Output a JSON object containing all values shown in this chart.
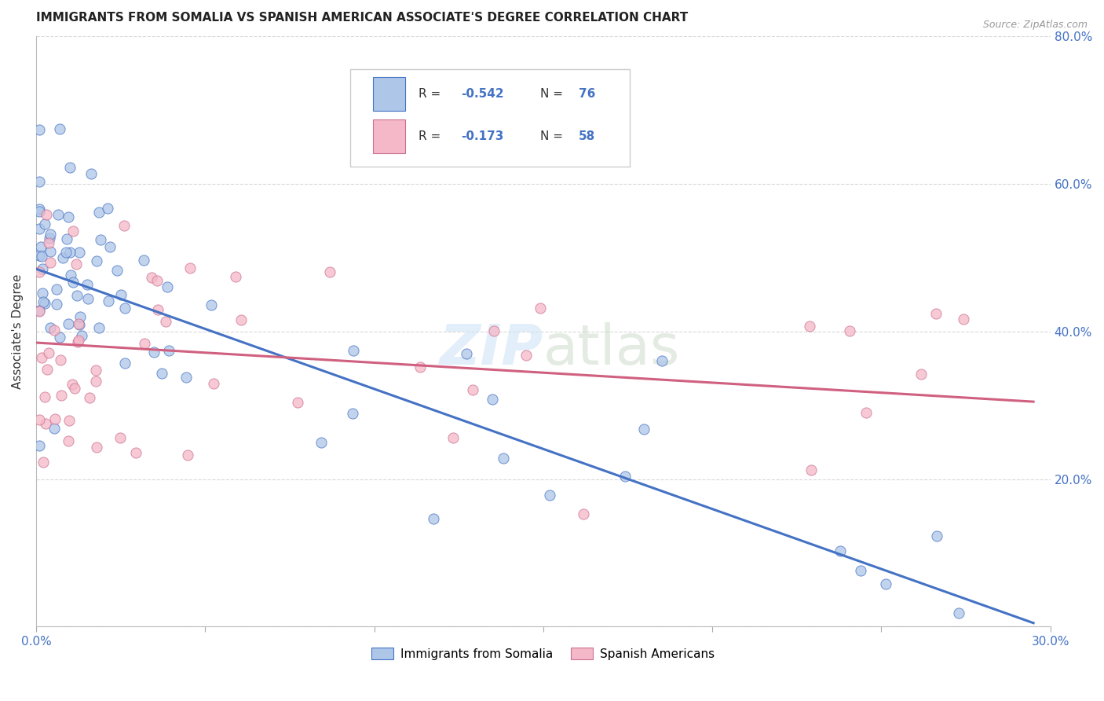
{
  "title": "IMMIGRANTS FROM SOMALIA VS SPANISH AMERICAN ASSOCIATE'S DEGREE CORRELATION CHART",
  "source": "Source: ZipAtlas.com",
  "ylabel": "Associate's Degree",
  "x_min": 0.0,
  "x_max": 0.3,
  "y_min": 0.0,
  "y_max": 0.8,
  "x_ticks": [
    0.0,
    0.05,
    0.1,
    0.15,
    0.2,
    0.25,
    0.3
  ],
  "y_ticks": [
    0.0,
    0.2,
    0.4,
    0.6,
    0.8
  ],
  "y_tick_labels": [
    "",
    "20.0%",
    "40.0%",
    "60.0%",
    "80.0%"
  ],
  "color_blue": "#aec6e8",
  "color_pink": "#f4b8c8",
  "line_color_blue": "#4472c4",
  "line_color_pink": "#d06080",
  "blue_line_x0": 0.0,
  "blue_line_y0": 0.485,
  "blue_line_x1": 0.295,
  "blue_line_y1": 0.005,
  "pink_line_x0": 0.0,
  "pink_line_y0": 0.385,
  "pink_line_x1": 0.295,
  "pink_line_y1": 0.305,
  "background_color": "#ffffff",
  "grid_color": "#d0d0d0"
}
